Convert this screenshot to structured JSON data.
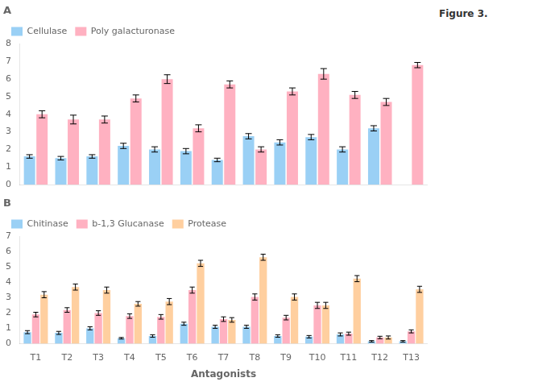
{
  "chart_data": [
    {
      "type": "bar",
      "title": "A",
      "annotations": [
        "Figure 3."
      ],
      "categories": [
        null,
        null,
        null,
        null,
        null,
        null,
        null,
        null,
        null,
        null,
        null,
        null,
        null
      ],
      "series": [
        {
          "name": "Cellulase",
          "values": [
            1.6,
            1.5,
            1.6,
            2.2,
            2.0,
            1.9,
            1.4,
            2.75,
            2.4,
            2.7,
            2.0,
            3.2,
            null
          ],
          "errors": [
            0.1,
            0.1,
            0.1,
            0.15,
            0.15,
            0.15,
            0.1,
            0.15,
            0.15,
            0.15,
            0.15,
            0.15,
            null
          ]
        },
        {
          "name": "Poly galacturonase",
          "values": [
            4.0,
            3.7,
            3.7,
            4.9,
            6.0,
            3.2,
            5.7,
            2.0,
            5.3,
            6.3,
            5.1,
            4.7,
            6.8
          ],
          "errors": [
            0.2,
            0.25,
            0.2,
            0.2,
            0.25,
            0.2,
            0.2,
            0.15,
            0.2,
            0.3,
            0.2,
            0.2,
            0.15
          ]
        }
      ],
      "ylim": [
        0,
        8
      ],
      "yticks": [
        0,
        1,
        2,
        3,
        4,
        5,
        6,
        7,
        8
      ],
      "grid": false,
      "legend": "upper left",
      "tick_labels": "y"
    },
    {
      "type": "bar",
      "title": "B",
      "xlabel": "Antagonists",
      "categories": [
        "T1",
        "T2",
        "T3",
        "T4",
        "T5",
        "T6",
        "T7",
        "T8",
        "T9",
        "T10",
        "T11",
        "T12",
        "T13"
      ],
      "series": [
        {
          "name": "Chitinase",
          "values": [
            0.75,
            0.7,
            1.0,
            0.35,
            0.5,
            1.3,
            1.1,
            1.1,
            0.5,
            0.45,
            0.6,
            0.15,
            0.15
          ],
          "errors": [
            0.1,
            0.1,
            0.1,
            0.05,
            0.08,
            0.1,
            0.1,
            0.1,
            0.08,
            0.08,
            0.1,
            0.05,
            0.05
          ]
        },
        {
          "name": "b-1,3 Glucanase",
          "values": [
            1.9,
            2.2,
            2.0,
            1.8,
            1.75,
            3.5,
            1.6,
            3.05,
            1.7,
            2.5,
            0.65,
            0.4,
            0.8
          ],
          "errors": [
            0.15,
            0.15,
            0.15,
            0.15,
            0.15,
            0.2,
            0.15,
            0.2,
            0.15,
            0.2,
            0.1,
            0.08,
            0.1
          ]
        },
        {
          "name": "Protease",
          "values": [
            3.2,
            3.7,
            3.5,
            2.6,
            2.75,
            5.25,
            1.55,
            5.65,
            3.05,
            2.5,
            4.25,
            0.4,
            3.55
          ],
          "errors": [
            0.2,
            0.2,
            0.2,
            0.15,
            0.2,
            0.2,
            0.15,
            0.2,
            0.2,
            0.2,
            0.2,
            0.1,
            0.2
          ]
        }
      ],
      "ylim": [
        0,
        7
      ],
      "yticks": [
        0,
        1,
        2,
        3,
        4,
        5,
        6,
        7
      ],
      "grid": false,
      "legend": "upper left"
    }
  ]
}
